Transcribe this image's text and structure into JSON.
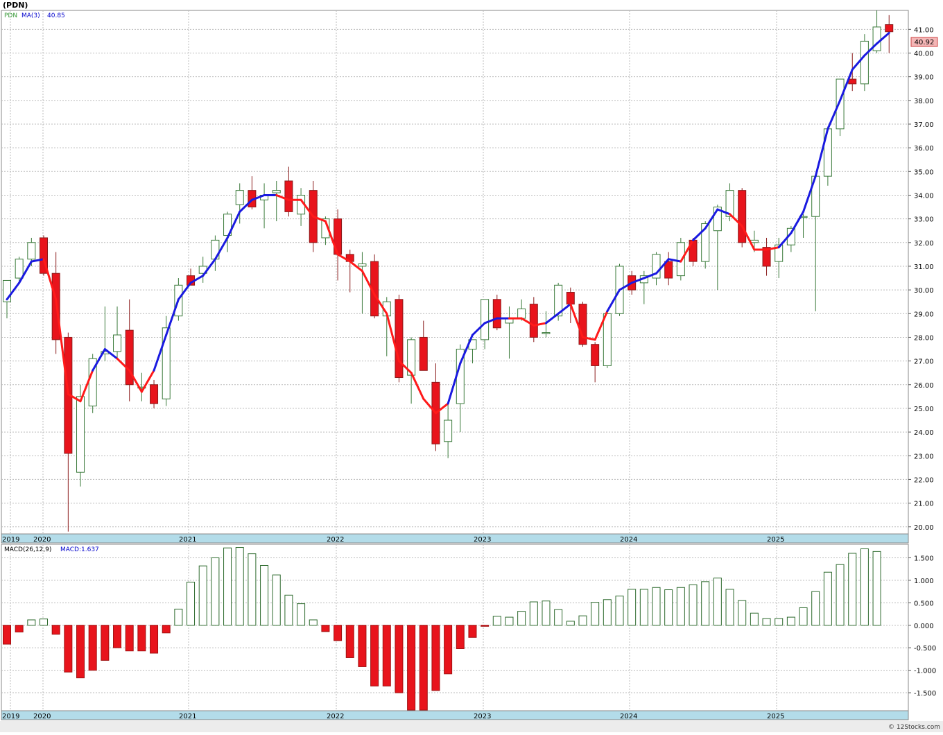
{
  "title": "(PDN)",
  "footer": "© 12Stocks.com",
  "chart_data": [
    {
      "type": "candlestick",
      "ticker": "PDN",
      "ma_label": "MA(3)",
      "ma_value_label": "40.85",
      "last_price_label": "40.92",
      "ylim": [
        19.7,
        41.8
      ],
      "y_ticks": [
        20,
        21,
        22,
        23,
        24,
        25,
        26,
        27,
        28,
        29,
        30,
        31,
        32,
        33,
        34,
        35,
        36,
        37,
        38,
        39,
        40,
        41
      ],
      "y_tick_labels": [
        "20.00",
        "21.00",
        "22.00",
        "23.00",
        "24.00",
        "25.00",
        "26.00",
        "27.00",
        "28.00",
        "29.00",
        "30.00",
        "31.00",
        "32.00",
        "33.00",
        "34.00",
        "35.00",
        "36.00",
        "37.00",
        "38.00",
        "39.00",
        "40.00",
        "41.00"
      ],
      "x_labels": [
        "2019",
        "2020",
        "2021",
        "2022",
        "2023",
        "2024",
        "2025"
      ],
      "ohlc_columns": [
        "open",
        "high",
        "low",
        "close"
      ],
      "ohlc": [
        [
          29.5,
          30.4,
          28.8,
          30.4
        ],
        [
          30.5,
          31.4,
          30.3,
          31.3
        ],
        [
          31.3,
          32.2,
          31.0,
          32.0
        ],
        [
          32.2,
          32.3,
          30.6,
          30.7
        ],
        [
          30.7,
          31.6,
          27.3,
          27.9
        ],
        [
          28.0,
          28.2,
          19.8,
          23.1
        ],
        [
          22.3,
          26.0,
          21.7,
          25.5
        ],
        [
          25.1,
          27.3,
          24.8,
          27.1
        ],
        [
          27.3,
          29.3,
          27.0,
          27.4
        ],
        [
          27.4,
          29.3,
          27.1,
          28.1
        ],
        [
          28.3,
          29.6,
          25.3,
          26.0
        ],
        [
          25.9,
          26.5,
          25.3,
          25.9
        ],
        [
          26.0,
          26.2,
          25.0,
          25.2
        ],
        [
          25.4,
          28.9,
          25.1,
          28.4
        ],
        [
          28.9,
          30.5,
          28.7,
          30.2
        ],
        [
          30.6,
          30.9,
          30.3,
          30.2
        ],
        [
          30.7,
          31.4,
          30.3,
          31.0
        ],
        [
          31.3,
          32.3,
          30.8,
          32.1
        ],
        [
          32.3,
          33.3,
          31.6,
          33.2
        ],
        [
          33.6,
          34.5,
          32.8,
          34.2
        ],
        [
          34.2,
          34.8,
          33.4,
          33.5
        ],
        [
          33.8,
          34.5,
          32.6,
          34.0
        ],
        [
          34.1,
          34.6,
          32.9,
          34.2
        ],
        [
          34.6,
          35.2,
          33.1,
          33.3
        ],
        [
          33.2,
          34.3,
          32.7,
          34.0
        ],
        [
          34.2,
          34.6,
          31.6,
          32.0
        ],
        [
          32.2,
          33.1,
          31.9,
          33.0
        ],
        [
          33.0,
          33.4,
          30.4,
          31.5
        ],
        [
          31.5,
          31.7,
          29.9,
          31.2
        ],
        [
          31.0,
          31.6,
          29.0,
          31.1
        ],
        [
          31.2,
          31.5,
          28.8,
          28.9
        ],
        [
          28.9,
          29.7,
          27.2,
          29.5
        ],
        [
          29.6,
          29.8,
          26.1,
          26.3
        ],
        [
          26.4,
          28.0,
          25.2,
          27.9
        ],
        [
          28.0,
          28.7,
          26.6,
          26.6
        ],
        [
          26.1,
          26.9,
          23.2,
          23.5
        ],
        [
          23.6,
          25.3,
          22.9,
          24.5
        ],
        [
          25.2,
          27.7,
          24.0,
          27.5
        ],
        [
          27.5,
          27.9,
          26.9,
          27.9
        ],
        [
          27.9,
          29.6,
          27.5,
          29.6
        ],
        [
          29.6,
          29.8,
          28.3,
          28.4
        ],
        [
          28.6,
          29.3,
          27.1,
          28.8
        ],
        [
          28.8,
          29.6,
          28.7,
          29.2
        ],
        [
          29.4,
          29.7,
          27.8,
          28.0
        ],
        [
          28.2,
          29.1,
          28.0,
          28.2
        ],
        [
          28.9,
          30.3,
          28.7,
          30.2
        ],
        [
          29.9,
          30.1,
          28.6,
          29.4
        ],
        [
          29.4,
          29.5,
          27.6,
          27.7
        ],
        [
          27.7,
          27.8,
          26.1,
          26.8
        ],
        [
          26.8,
          29.1,
          26.7,
          29.0
        ],
        [
          29.0,
          31.1,
          28.9,
          31.0
        ],
        [
          30.6,
          30.8,
          29.8,
          30.0
        ],
        [
          30.3,
          30.8,
          29.4,
          30.6
        ],
        [
          30.5,
          31.6,
          30.2,
          31.5
        ],
        [
          31.2,
          31.6,
          30.2,
          30.5
        ],
        [
          30.6,
          32.2,
          30.4,
          32.0
        ],
        [
          32.1,
          32.2,
          31.0,
          31.2
        ],
        [
          31.2,
          32.9,
          30.9,
          32.8
        ],
        [
          32.5,
          33.6,
          30.0,
          33.5
        ],
        [
          33.1,
          34.5,
          32.9,
          34.2
        ],
        [
          34.2,
          34.3,
          31.8,
          32.0
        ],
        [
          32.0,
          32.5,
          31.6,
          32.1
        ],
        [
          31.8,
          32.2,
          30.6,
          31.0
        ],
        [
          31.2,
          32.2,
          30.5,
          31.9
        ],
        [
          31.9,
          32.7,
          31.6,
          32.6
        ],
        [
          33.1,
          33.2,
          32.2,
          33.1
        ],
        [
          33.1,
          34.9,
          29.1,
          34.8
        ],
        [
          34.8,
          36.9,
          34.4,
          36.8
        ],
        [
          36.8,
          38.9,
          36.5,
          38.9
        ],
        [
          38.9,
          40.0,
          38.4,
          38.7
        ],
        [
          38.7,
          40.8,
          38.4,
          40.5
        ],
        [
          40.1,
          41.8,
          40.0,
          41.1
        ],
        [
          41.2,
          41.6,
          40.0,
          40.9
        ]
      ],
      "ma3": [
        29.6,
        30.3,
        31.2,
        31.3,
        29.6,
        25.6,
        25.3,
        26.6,
        27.5,
        27.1,
        26.6,
        25.7,
        26.6,
        28.1,
        29.6,
        30.3,
        30.6,
        31.3,
        32.2,
        33.3,
        33.8,
        34.0,
        34.0,
        33.8,
        33.8,
        33.1,
        32.9,
        31.5,
        31.2,
        30.8,
        29.8,
        29.0,
        27.0,
        26.5,
        25.4,
        24.8,
        25.2,
        26.9,
        28.1,
        28.6,
        28.8,
        28.8,
        28.8,
        28.5,
        28.6,
        29.0,
        29.4,
        28.0,
        27.9,
        29.1,
        30.0,
        30.3,
        30.5,
        30.7,
        31.3,
        31.2,
        32.1,
        32.6,
        33.4,
        33.2,
        32.7,
        31.7,
        31.7,
        31.8,
        32.4,
        33.3,
        34.8,
        36.8,
        38.0,
        39.3,
        39.9,
        40.4,
        40.85
      ],
      "ma3_colors": [
        "blue",
        "blue",
        "blue",
        "red",
        "red",
        "red",
        "red",
        "blue",
        "blue",
        "red",
        "red",
        "red",
        "blue",
        "blue",
        "blue",
        "blue",
        "blue",
        "blue",
        "blue",
        "blue",
        "blue",
        "blue",
        "red",
        "red",
        "red",
        "red",
        "red",
        "red",
        "red",
        "red",
        "red",
        "red",
        "red",
        "red",
        "red",
        "red",
        "blue",
        "blue",
        "blue",
        "blue",
        "blue",
        "red",
        "red",
        "red",
        "blue",
        "blue",
        "red",
        "red",
        "red",
        "blue",
        "blue",
        "blue",
        "blue",
        "blue",
        "blue",
        "red",
        "blue",
        "blue",
        "blue",
        "red",
        "red",
        "red",
        "red",
        "blue",
        "blue",
        "blue",
        "blue",
        "blue",
        "blue",
        "blue",
        "blue",
        "blue",
        "blue"
      ]
    },
    {
      "type": "histogram",
      "label": "MACD(26,12,9)",
      "value_label": "MACD:1.637",
      "ylim": [
        -1.9,
        1.8
      ],
      "y_ticks": [
        -1.5,
        -1.0,
        -0.5,
        0.0,
        0.5,
        1.0,
        1.5
      ],
      "y_tick_labels": [
        "-1.500",
        "-1.000",
        "-0.500",
        "0.000",
        "0.500",
        "1.000",
        "1.500"
      ],
      "x_labels": [
        "2019",
        "2020",
        "2021",
        "2022",
        "2023",
        "2024",
        "2025"
      ],
      "values": [
        -0.42,
        -0.15,
        0.12,
        0.14,
        -0.2,
        -1.04,
        -1.17,
        -1.0,
        -0.78,
        -0.5,
        -0.57,
        -0.57,
        -0.62,
        -0.17,
        0.36,
        0.96,
        1.32,
        1.5,
        1.72,
        1.73,
        1.59,
        1.33,
        1.12,
        0.67,
        0.48,
        0.12,
        -0.14,
        -0.34,
        -0.72,
        -0.92,
        -1.35,
        -1.35,
        -1.5,
        -1.96,
        -1.96,
        -1.45,
        -1.08,
        -0.52,
        -0.27,
        -0.01,
        0.2,
        0.18,
        0.31,
        0.52,
        0.54,
        0.35,
        0.09,
        0.21,
        0.51,
        0.57,
        0.65,
        0.8,
        0.8,
        0.84,
        0.79,
        0.84,
        0.9,
        0.97,
        1.05,
        0.8,
        0.55,
        0.27,
        0.15,
        0.15,
        0.18,
        0.39,
        0.75,
        1.18,
        1.35,
        1.6,
        1.7,
        1.64
      ]
    }
  ]
}
